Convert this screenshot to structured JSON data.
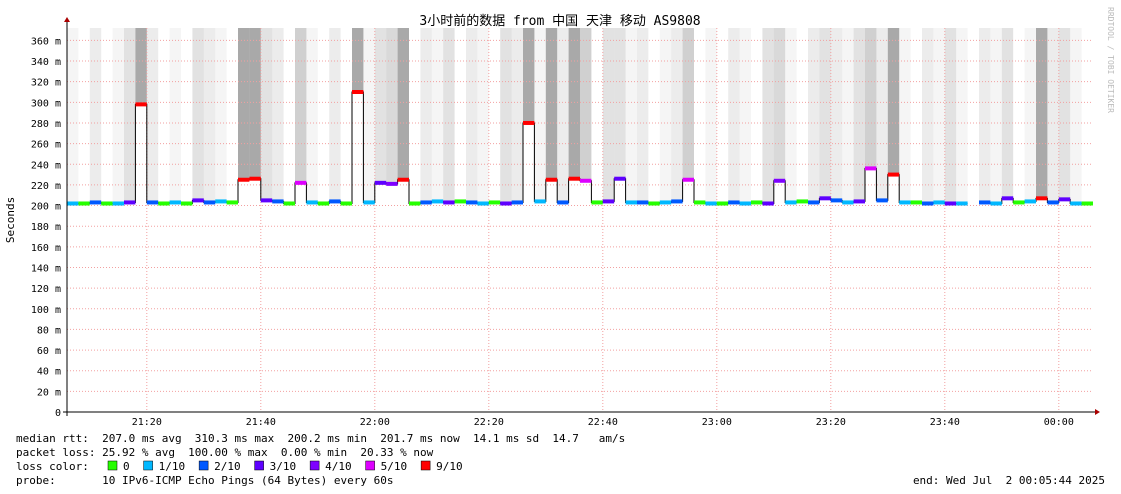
{
  "chart_data": {
    "type": "smokeping",
    "title": "3小时前的数据 from 中国 天津 移动 AS9808",
    "y_label": "Seconds",
    "watermark": "RRDTOOL / TOBI OETIKER",
    "ylim": [
      0,
      372
    ],
    "yticks": [
      0,
      {
        "value": 20,
        "label": "20 m"
      },
      {
        "value": 40,
        "label": "40 m"
      },
      {
        "value": 60,
        "label": "60 m"
      },
      {
        "value": 80,
        "label": "80 m"
      },
      {
        "value": 100,
        "label": "100 m"
      },
      {
        "value": 120,
        "label": "120 m"
      },
      {
        "value": 140,
        "label": "140 m"
      },
      {
        "value": 160,
        "label": "160 m"
      },
      {
        "value": 180,
        "label": "180 m"
      },
      {
        "value": 200,
        "label": "200 m"
      },
      {
        "value": 220,
        "label": "220 m"
      },
      {
        "value": 240,
        "label": "240 m"
      },
      {
        "value": 260,
        "label": "260 m"
      },
      {
        "value": 280,
        "label": "280 m"
      },
      {
        "value": 300,
        "label": "300 m"
      },
      {
        "value": 320,
        "label": "320 m"
      },
      {
        "value": 340,
        "label": "340 m"
      },
      {
        "value": 360,
        "label": "360 m"
      }
    ],
    "xlim": [
      "21:06",
      "00:06"
    ],
    "xticks": [
      "21:20",
      "21:40",
      "22:00",
      "22:20",
      "22:40",
      "23:00",
      "23:20",
      "23:40",
      "00:00"
    ],
    "grid": true,
    "x": [
      "21:07",
      "21:09",
      "21:11",
      "21:13",
      "21:15",
      "21:17",
      "21:19",
      "21:21",
      "21:23",
      "21:25",
      "21:27",
      "21:29",
      "21:31",
      "21:33",
      "21:35",
      "21:37",
      "21:39",
      "21:41",
      "21:43",
      "21:45",
      "21:47",
      "21:49",
      "21:51",
      "21:53",
      "21:55",
      "21:57",
      "21:59",
      "22:01",
      "22:03",
      "22:05",
      "22:07",
      "22:09",
      "22:11",
      "22:13",
      "22:15",
      "22:17",
      "22:19",
      "22:21",
      "22:23",
      "22:25",
      "22:27",
      "22:29",
      "22:31",
      "22:33",
      "22:35",
      "22:37",
      "22:39",
      "22:41",
      "22:43",
      "22:45",
      "22:47",
      "22:49",
      "22:51",
      "22:53",
      "22:55",
      "22:57",
      "22:59",
      "23:01",
      "23:03",
      "23:05",
      "23:07",
      "23:09",
      "23:11",
      "23:13",
      "23:15",
      "23:17",
      "23:19",
      "23:21",
      "23:23",
      "23:25",
      "23:27",
      "23:29",
      "23:31",
      "23:33",
      "23:35",
      "23:37",
      "23:39",
      "23:41",
      "23:43",
      "23:45",
      "23:47",
      "23:49",
      "23:51",
      "23:53",
      "23:55",
      "23:57",
      "23:59",
      "00:01",
      "00:03",
      "00:05"
    ],
    "values": [
      202,
      202,
      203,
      202,
      202,
      203,
      298,
      203,
      202,
      203,
      202,
      205,
      203,
      204,
      203,
      225,
      226,
      205,
      204,
      202,
      222,
      203,
      202,
      204,
      202,
      310,
      203,
      222,
      221,
      225,
      202,
      203,
      204,
      203,
      204,
      203,
      202,
      203,
      202,
      203,
      280,
      204,
      225,
      203,
      226,
      224,
      203,
      204,
      226,
      203,
      203,
      202,
      203,
      204,
      225,
      203,
      202,
      202,
      203,
      202,
      203,
      202,
      224,
      203,
      204,
      203,
      207,
      205,
      203,
      204,
      236,
      205,
      230,
      203,
      203,
      202,
      203,
      202,
      202,
      null,
      203,
      202,
      207,
      203,
      204,
      207,
      203,
      206,
      202,
      202
    ],
    "loss": [
      1,
      0,
      2,
      0,
      1,
      3,
      9,
      2,
      0,
      1,
      0,
      3,
      2,
      1,
      0,
      9,
      9,
      3,
      2,
      0,
      5,
      1,
      0,
      2,
      0,
      9,
      1,
      3,
      4,
      9,
      0,
      2,
      1,
      3,
      0,
      2,
      1,
      0,
      3,
      2,
      9,
      1,
      9,
      2,
      9,
      5,
      0,
      3,
      3,
      1,
      2,
      0,
      1,
      2,
      5,
      0,
      1,
      0,
      2,
      1,
      0,
      3,
      4,
      1,
      0,
      2,
      3,
      2,
      1,
      3,
      5,
      2,
      9,
      1,
      0,
      2,
      1,
      3,
      1,
      null,
      2,
      1,
      3,
      0,
      1,
      9,
      2,
      3,
      1,
      0
    ],
    "loss_levels": [
      {
        "name": "0",
        "color": "#26ff00"
      },
      {
        "name": "1/10",
        "color": "#00b8ff"
      },
      {
        "name": "2/10",
        "color": "#0059ff"
      },
      {
        "name": "3/10",
        "color": "#5e00ff"
      },
      {
        "name": "4/10",
        "color": "#7e00ff"
      },
      {
        "name": "5/10",
        "color": "#dd00ff"
      },
      {
        "name": "9/10",
        "color": "#ff0000"
      }
    ],
    "stats": {
      "median_rtt": "median rtt:  207.0 ms avg  310.3 ms max  200.2 ms min  201.7 ms now  14.1 ms sd  14.7   am/s",
      "packet_loss": "packet loss: 25.92 % avg  100.00 % max  0.00 % min  20.33 % now",
      "loss_color": "loss color:",
      "probe": "probe:       10 IPv6-ICMP Echo Pings (64 Bytes) every 60s",
      "end": "end: Wed Jul  2 00:05:44 2025"
    }
  }
}
